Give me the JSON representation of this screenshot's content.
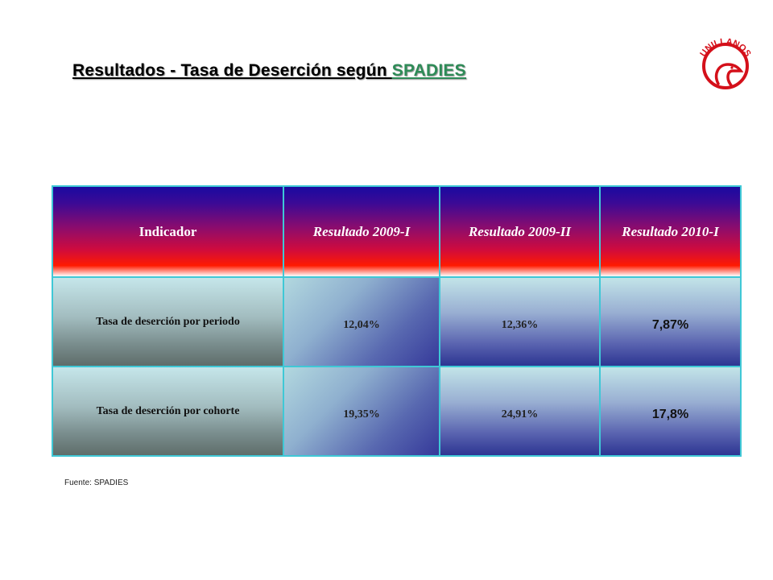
{
  "title": {
    "text": "Resultados - Tasa de Deserción según ",
    "link": "SPADIES"
  },
  "logo": {
    "text": "UNILLANOS",
    "color": "#d4101a"
  },
  "table": {
    "headers": [
      "Indicador",
      "Resultado 2009-I",
      "Resultado 2009-II",
      "Resultado 2010-I"
    ],
    "rows": [
      {
        "label": "Tasa de deserción por periodo",
        "values": [
          "12,04%",
          "12,36%",
          "7,87%"
        ]
      },
      {
        "label": "Tasa de deserción por cohorte",
        "values": [
          "19,35%",
          "24,91%",
          "17,8%"
        ]
      }
    ]
  },
  "source": "Fuente: SPADIES",
  "colors": {
    "border": "#3fc8d6",
    "link": "#2e8b57"
  }
}
